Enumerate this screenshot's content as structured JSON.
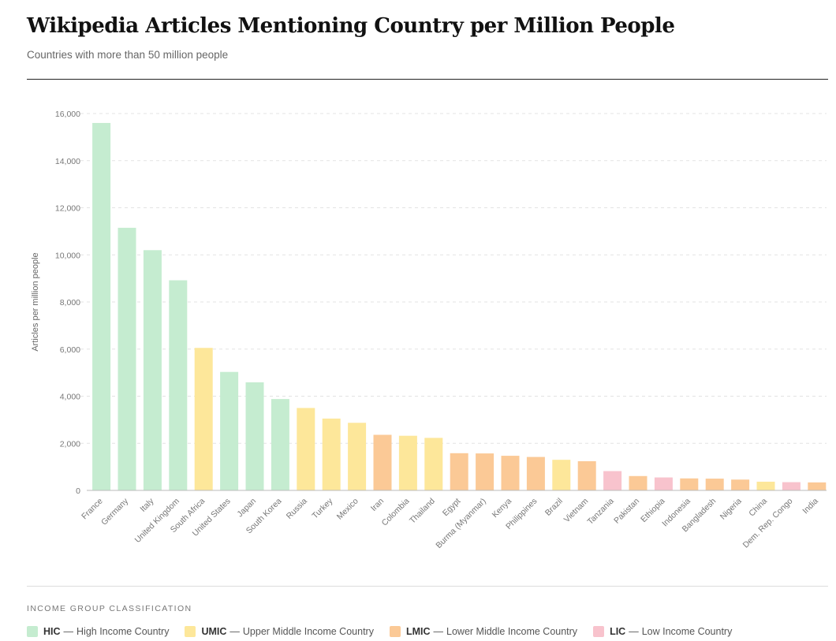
{
  "header": {
    "title": "Wikipedia Articles Mentioning Country per Million People",
    "subtitle": "Countries with more than 50 million people"
  },
  "colors": {
    "HIC": "#c5ecd0",
    "UMIC": "#fde79a",
    "LMIC": "#fbc996",
    "LIC": "#f8c3cd",
    "grid": "#e3e3e3",
    "axis_text": "#777777"
  },
  "chart_data": {
    "type": "bar",
    "title": "Wikipedia Articles Mentioning Country per Million People",
    "subtitle": "Countries with more than 50 million people",
    "xlabel": "",
    "ylabel": "Articles per million people",
    "ylim": [
      0,
      16000
    ],
    "yticks": [
      0,
      2000,
      4000,
      6000,
      8000,
      10000,
      12000,
      14000,
      16000
    ],
    "ytick_labels": [
      "0",
      "2,000",
      "4,000",
      "6,000",
      "8,000",
      "10,000",
      "12,000",
      "14,000",
      "16,000"
    ],
    "grid": true,
    "categories": [
      "France",
      "Germany",
      "Italy",
      "United Kingdom",
      "South Africa",
      "United States",
      "Japan",
      "South Korea",
      "Russia",
      "Turkey",
      "Mexico",
      "Iran",
      "Colombia",
      "Thailand",
      "Egypt",
      "Burma (Myanmar)",
      "Kenya",
      "Philippines",
      "Brazil",
      "Vietnam",
      "Tanzania",
      "Pakistan",
      "Ethiopia",
      "Indonesia",
      "Bangladesh",
      "Nigeria",
      "China",
      "Dem. Rep. Congo",
      "India"
    ],
    "values": [
      15600,
      11150,
      10200,
      8920,
      6050,
      5030,
      4590,
      3880,
      3500,
      3050,
      2870,
      2360,
      2320,
      2230,
      1580,
      1570,
      1470,
      1420,
      1300,
      1240,
      820,
      610,
      550,
      510,
      500,
      460,
      370,
      350,
      340
    ],
    "groups": [
      "HIC",
      "HIC",
      "HIC",
      "HIC",
      "UMIC",
      "HIC",
      "HIC",
      "HIC",
      "UMIC",
      "UMIC",
      "UMIC",
      "LMIC",
      "UMIC",
      "UMIC",
      "LMIC",
      "LMIC",
      "LMIC",
      "LMIC",
      "UMIC",
      "LMIC",
      "LIC",
      "LMIC",
      "LIC",
      "LMIC",
      "LMIC",
      "LMIC",
      "UMIC",
      "LIC",
      "LMIC"
    ],
    "legend_placement": "bottom"
  },
  "legend": {
    "title": "INCOME GROUP CLASSIFICATION",
    "separator": "—",
    "items": [
      {
        "code": "HIC",
        "label": "High Income Country"
      },
      {
        "code": "UMIC",
        "label": "Upper Middle Income Country"
      },
      {
        "code": "LMIC",
        "label": "Lower Middle Income Country"
      },
      {
        "code": "LIC",
        "label": "Low Income Country"
      }
    ]
  }
}
